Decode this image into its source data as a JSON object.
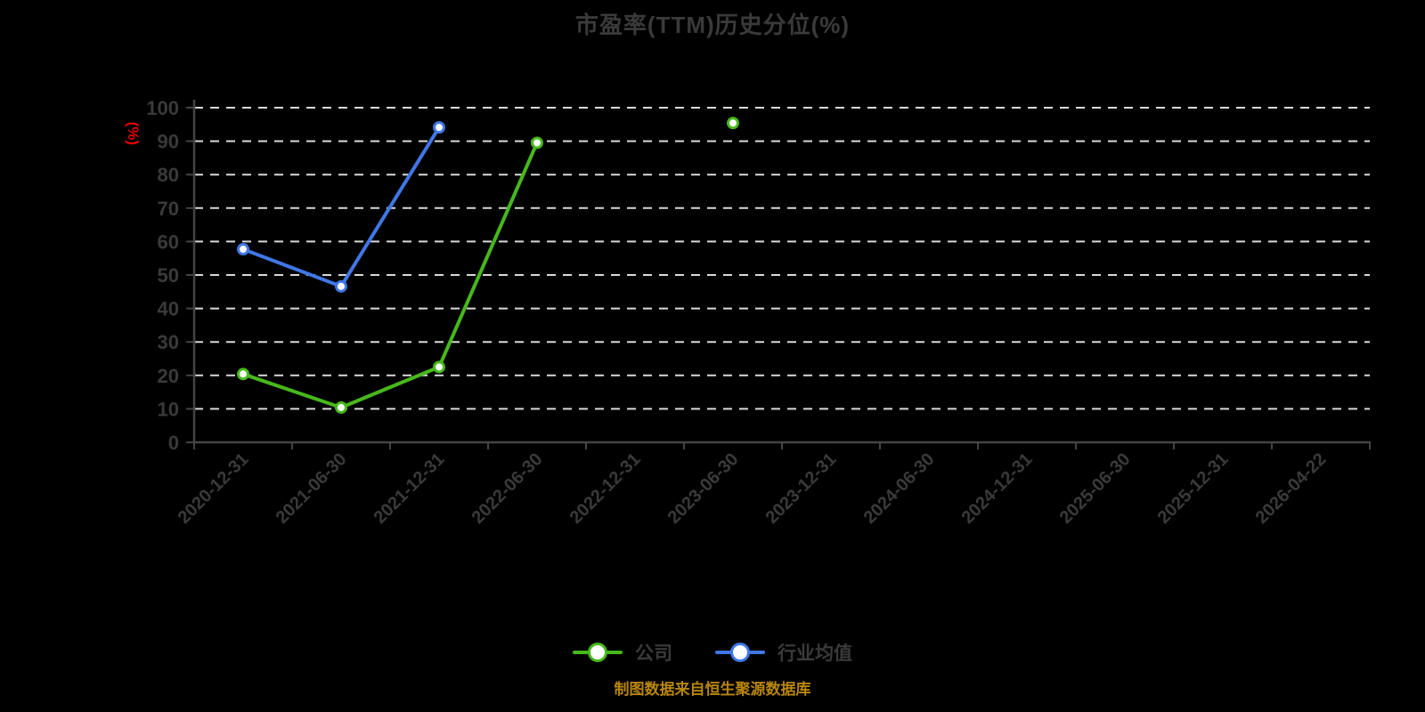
{
  "title": "市盈率(TTM)历史分位(%)",
  "source_note": "制图数据来自恒生聚源数据库",
  "colors": {
    "background": "#000000",
    "title_text": "#3a3a3a",
    "axis_text": "#3a3a3a",
    "axis_line": "#444444",
    "gridline": "#d9d9d9",
    "y_unit_label": "#e60000",
    "source_note_text": "#b8860b",
    "company_series": "#47b81c",
    "industry_series": "#4077e6",
    "marker_fill": "#ffffff"
  },
  "chart_data": {
    "type": "line",
    "title": "市盈率(TTM)历史分位(%)",
    "xlabel": "",
    "ylabel": "(%)",
    "ylim": [
      0,
      100
    ],
    "yticks": [
      0,
      10,
      20,
      30,
      40,
      50,
      60,
      70,
      80,
      90,
      100
    ],
    "grid": "horizontal dashed white lines on black",
    "legend_position": "bottom center",
    "x_label_rotation": -45,
    "categories": [
      "2020-12-31",
      "2021-06-30",
      "2021-12-31",
      "2022-06-30",
      "2022-12-31",
      "2023-06-30",
      "2023-12-31",
      "2024-06-30",
      "2024-12-31",
      "2025-06-30",
      "2025-12-31",
      "2026-04-22"
    ],
    "series": [
      {
        "key": "company",
        "name": "公司",
        "color": "#47b81c",
        "values": [
          20.4,
          10.4,
          22.5,
          89.5,
          null,
          95.4,
          null,
          null,
          null,
          null,
          null,
          null
        ]
      },
      {
        "key": "industry_avg",
        "name": "行业均值",
        "color": "#4077e6",
        "values": [
          57.7,
          46.6,
          94.1,
          null,
          null,
          null,
          null,
          null,
          null,
          null,
          null,
          null
        ]
      }
    ]
  }
}
